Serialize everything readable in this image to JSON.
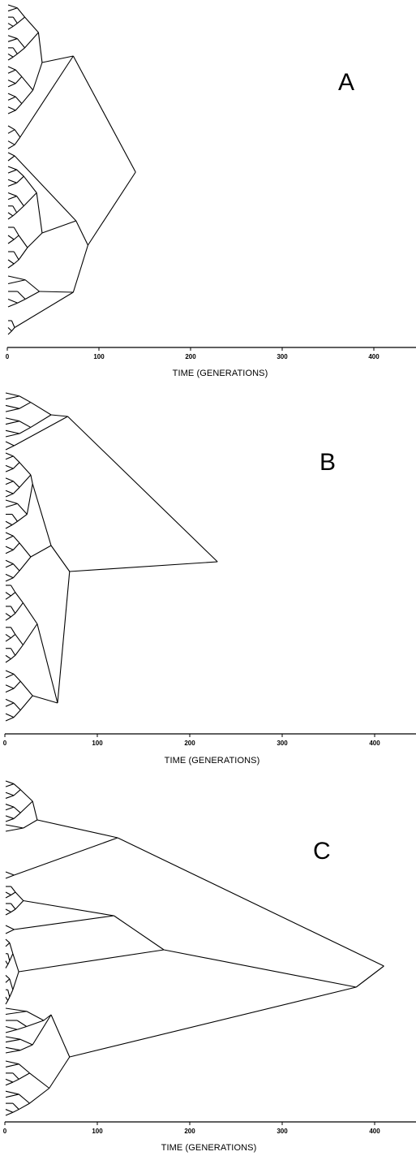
{
  "chart_data": [
    {
      "type": "other",
      "panel_label": "A",
      "xlabel": "TIME (GENERATIONS)",
      "xlim": [
        0,
        440
      ],
      "xticks": [
        0,
        100,
        200,
        300,
        400
      ],
      "leaves": 50,
      "root_time": 140,
      "major_nodes_time": [
        140,
        75,
        88,
        38,
        72
      ]
    },
    {
      "type": "other",
      "panel_label": "B",
      "xlabel": "TIME (GENERATIONS)",
      "xlim": [
        0,
        440
      ],
      "xticks": [
        0,
        100,
        200,
        300,
        400
      ],
      "leaves": 50,
      "root_time": 230,
      "major_nodes_time": [
        230,
        68,
        68,
        55,
        50,
        38
      ]
    },
    {
      "type": "other",
      "panel_label": "C",
      "xlabel": "TIME (GENERATIONS)",
      "xlim": [
        0,
        440
      ],
      "xticks": [
        0,
        100,
        200,
        300,
        400
      ],
      "leaves": 50,
      "root_time": 410,
      "major_nodes_time": [
        410,
        380,
        172,
        122,
        118,
        70,
        35
      ]
    }
  ]
}
